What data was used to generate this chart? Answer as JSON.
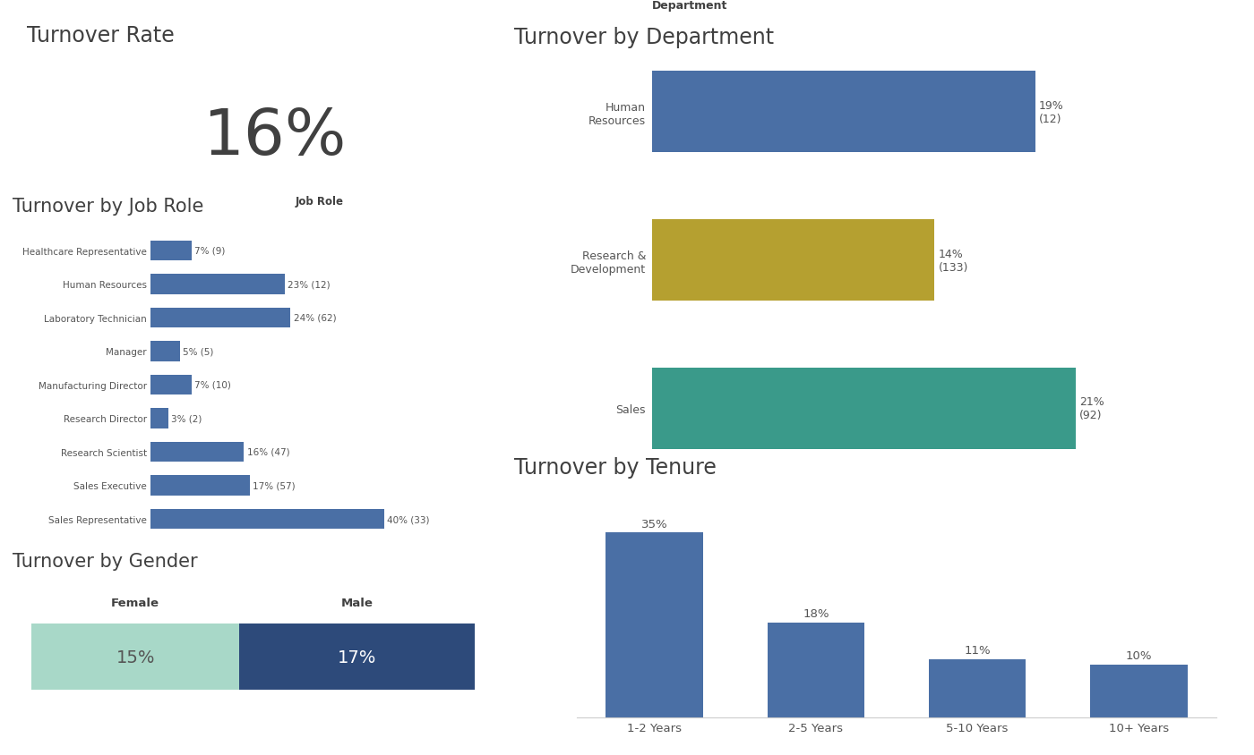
{
  "turnover_rate": "16%",
  "job_roles": [
    "Healthcare Representative",
    "Human Resources",
    "Laboratory Technician",
    "Manager",
    "Manufacturing Director",
    "Research Director",
    "Research Scientist",
    "Sales Executive",
    "Sales Representative"
  ],
  "job_role_values": [
    7,
    23,
    24,
    5,
    7,
    3,
    16,
    17,
    40
  ],
  "job_role_counts": [
    9,
    12,
    62,
    5,
    10,
    2,
    47,
    57,
    33
  ],
  "job_role_color": "#4a6fa5",
  "departments": [
    "Human\nResources",
    "Research &\nDevelopment",
    "Sales"
  ],
  "dept_values": [
    19,
    14,
    21
  ],
  "dept_counts": [
    12,
    133,
    92
  ],
  "dept_colors": [
    "#4a6fa5",
    "#b5a030",
    "#3a9a8a"
  ],
  "tenure_labels": [
    "1-2 Years",
    "2-5 Years",
    "5-10 Years",
    "10+ Years"
  ],
  "tenure_values": [
    35,
    18,
    11,
    10
  ],
  "tenure_color": "#4a6fa5",
  "gender_female_pct": 15,
  "gender_male_pct": 17,
  "gender_female_color": "#a8d8c8",
  "gender_male_color": "#2d4a7a",
  "gender_female_text": "#555555",
  "gender_male_text": "#ffffff",
  "bg_color": "#ffffff",
  "title_color": "#404040",
  "label_color": "#555555",
  "axis_label_color": "#404040"
}
